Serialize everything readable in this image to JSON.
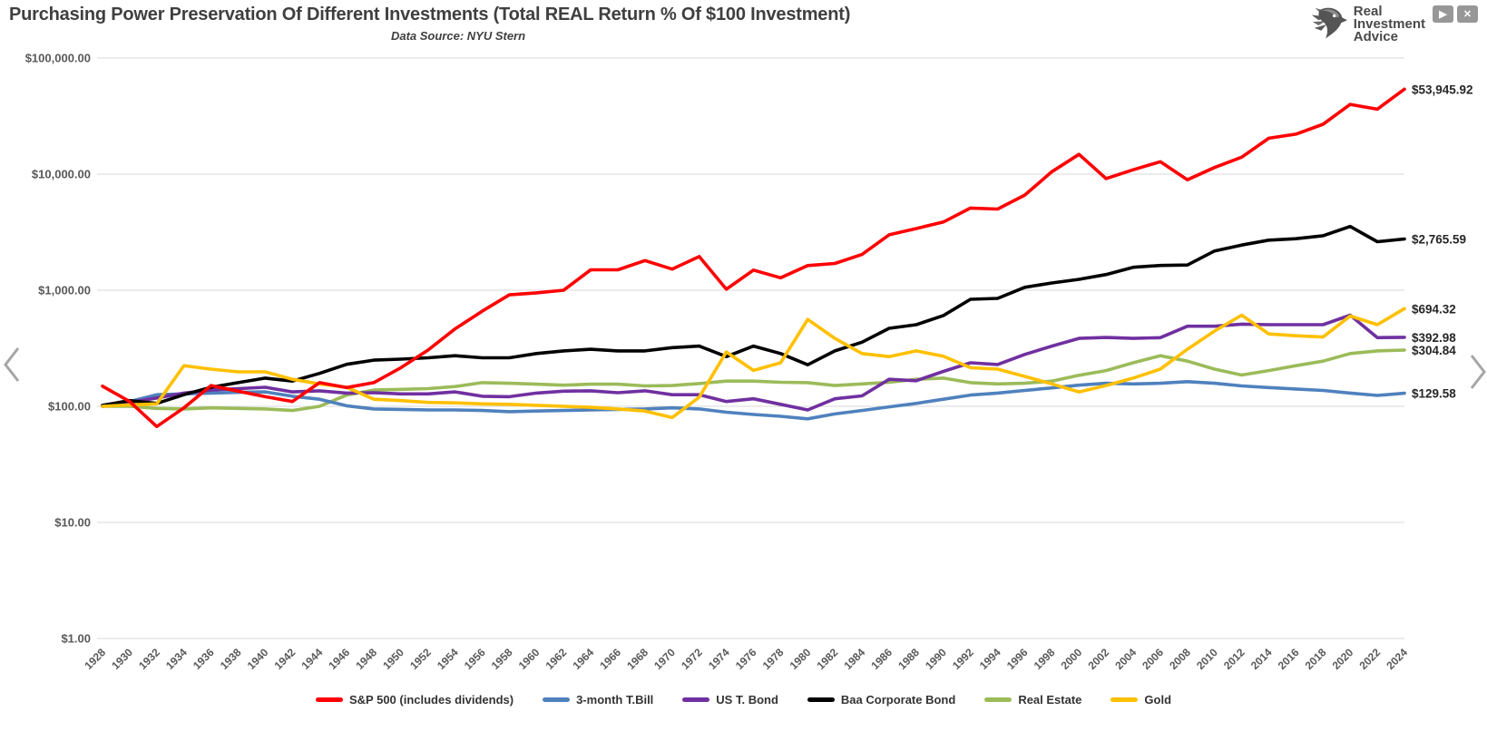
{
  "header": {
    "title": "Purchasing Power Preservation Of Different Investments (Total REAL Return % Of $100 Investment)",
    "subtitle": "Data Source: NYU Stern"
  },
  "logo": {
    "line1": "Real",
    "line2": "Investment",
    "line3": "Advice",
    "play_glyph": "▶",
    "close_glyph": "✕"
  },
  "icons": {
    "prev": "chevron-left",
    "next": "chevron-right",
    "brand": "eagle-head"
  },
  "chart_data": {
    "type": "line",
    "title": "Purchasing Power Preservation Of Different Investments (Total REAL Return % Of $100 Investment)",
    "subtitle": "Data Source: NYU Stern",
    "y_scale": "log",
    "grid": "horizontal",
    "legend_position": "bottom",
    "ylim": [
      1,
      100000
    ],
    "y_ticks": [
      {
        "value": 100000,
        "label": "$100,000.00"
      },
      {
        "value": 10000,
        "label": "$10,000.00"
      },
      {
        "value": 1000,
        "label": "$1,000.00"
      },
      {
        "value": 100,
        "label": "$100.00"
      },
      {
        "value": 10,
        "label": "$10.00"
      },
      {
        "value": 1,
        "label": "$1.00"
      }
    ],
    "x": [
      1928,
      1930,
      1932,
      1934,
      1936,
      1938,
      1940,
      1942,
      1944,
      1946,
      1948,
      1950,
      1952,
      1954,
      1956,
      1958,
      1960,
      1962,
      1964,
      1966,
      1968,
      1970,
      1972,
      1974,
      1976,
      1978,
      1980,
      1982,
      1984,
      1986,
      1988,
      1990,
      1992,
      1994,
      1996,
      1998,
      2000,
      2002,
      2004,
      2006,
      2008,
      2010,
      2012,
      2014,
      2016,
      2018,
      2020,
      2022,
      2024
    ],
    "series": [
      {
        "name": "S&P 500 (includes dividends)",
        "color": "#FF0000",
        "end_label": "$53,945.92",
        "values": [
          149,
          110,
          67,
          97,
          151,
          135,
          121,
          110,
          160,
          145,
          160,
          215,
          305,
          465,
          660,
          912,
          950,
          1000,
          1500,
          1500,
          1800,
          1520,
          1950,
          1020,
          1490,
          1280,
          1630,
          1700,
          2030,
          3000,
          3400,
          3870,
          5100,
          5000,
          6600,
          10500,
          14800,
          9150,
          10900,
          12800,
          8950,
          11400,
          14000,
          20400,
          22100,
          26900,
          39900,
          36250,
          53945.92
        ]
      },
      {
        "name": "3-month T.Bill",
        "color": "#4F81BD",
        "end_label": "$129.58",
        "values": [
          101,
          110,
          126,
          128,
          130,
          132,
          133,
          122,
          115,
          101,
          95,
          94,
          93,
          93,
          92,
          90,
          91,
          92,
          93,
          94,
          95,
          97,
          95,
          89,
          85,
          82,
          78,
          86,
          92,
          99,
          106,
          115,
          125,
          130,
          137,
          144,
          152,
          158,
          156,
          158,
          163,
          158,
          150,
          145,
          141,
          137,
          130,
          124,
          129.58
        ]
      },
      {
        "name": "US T. Bond",
        "color": "#7030A0",
        "end_label": "$392.98",
        "values": [
          100,
          108,
          118,
          130,
          138,
          142,
          146,
          133,
          136,
          130,
          131,
          128,
          128,
          133,
          122,
          121,
          130,
          135,
          136,
          131,
          136,
          126,
          126,
          110,
          116,
          104,
          93,
          116,
          123,
          171,
          166,
          200,
          237,
          229,
          280,
          330,
          385,
          392,
          385,
          390,
          490,
          490,
          510,
          505,
          505,
          505,
          610,
          390,
          392.98
        ]
      },
      {
        "name": "Baa Corporate Bond",
        "color": "#000000",
        "end_label": "$2,765.59",
        "values": [
          102,
          112,
          106,
          126,
          146,
          160,
          175,
          165,
          192,
          230,
          250,
          255,
          262,
          273,
          262,
          262,
          285,
          300,
          310,
          300,
          300,
          320,
          330,
          268,
          330,
          285,
          228,
          300,
          357,
          470,
          505,
          605,
          835,
          850,
          1060,
          1155,
          1240,
          1365,
          1575,
          1635,
          1650,
          2180,
          2450,
          2700,
          2780,
          2950,
          3540,
          2620,
          2765.59
        ]
      },
      {
        "name": "Real Estate",
        "color": "#9BBB59",
        "end_label": "$304.84",
        "values": [
          100,
          100,
          96,
          95,
          97,
          96,
          95,
          92,
          100,
          125,
          138,
          140,
          142,
          148,
          160,
          158,
          155,
          152,
          155,
          155,
          150,
          151,
          157,
          165,
          165,
          161,
          160,
          151,
          156,
          161,
          171,
          175,
          160,
          156,
          158,
          165,
          185,
          203,
          237,
          273,
          245,
          209,
          186,
          203,
          224,
          245,
          285,
          300,
          304.84
        ]
      },
      {
        "name": "Gold",
        "color": "#FFC000",
        "end_label": "$694.32",
        "values": [
          100,
          103,
          105,
          224,
          209,
          198,
          198,
          171,
          156,
          146,
          115,
          112,
          108,
          107,
          105,
          104,
          102,
          100,
          98,
          95,
          91,
          80,
          120,
          294,
          204,
          237,
          560,
          385,
          285,
          268,
          300,
          270,
          215,
          209,
          181,
          156,
          133,
          151,
          175,
          209,
          310,
          445,
          610,
          420,
          405,
          395,
          600,
          505,
          694.32
        ]
      }
    ]
  }
}
